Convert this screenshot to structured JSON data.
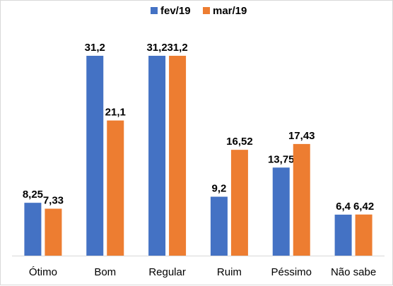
{
  "chart_data": {
    "type": "bar",
    "categories": [
      "Ótimo",
      "Bom",
      "Regular",
      "Ruim",
      "Péssimo",
      "Não sabe"
    ],
    "series": [
      {
        "name": "fev/19",
        "color": "#4472C4",
        "values": [
          8.25,
          31.2,
          31.2,
          9.2,
          13.75,
          6.4
        ],
        "labels": [
          "8,25",
          "31,2",
          "31,2",
          "9,2",
          "13,75",
          "6,4"
        ]
      },
      {
        "name": "mar/19",
        "color": "#ED7D31",
        "values": [
          7.33,
          21.1,
          31.2,
          16.52,
          17.43,
          6.42
        ],
        "labels": [
          "7,33",
          "21,1",
          "31,2",
          "16,52",
          "17,43",
          "6,42"
        ]
      }
    ],
    "ylim": [
      0,
      31.2
    ],
    "legend": "top-center",
    "grid": false
  }
}
